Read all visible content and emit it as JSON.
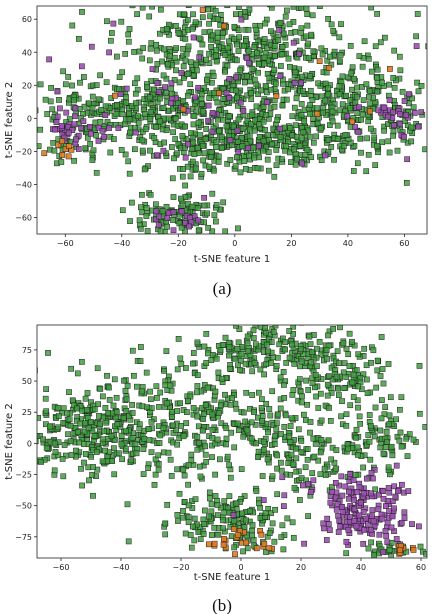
{
  "colors": {
    "majority": "#3f9e3f",
    "minority": "#9b4fb0",
    "rare": "#e07a1f",
    "edge": "#1f1f1f"
  },
  "chart_data": [
    {
      "type": "scatter",
      "caption": "(a)",
      "xlabel": "t-SNE feature 1",
      "ylabel": "t-SNE feature 2",
      "xlim": [
        -70,
        68
      ],
      "ylim": [
        -70,
        68
      ],
      "xticks": [
        -60,
        -40,
        -20,
        0,
        20,
        40,
        60
      ],
      "yticks": [
        -60,
        -40,
        -20,
        0,
        20,
        40,
        60
      ],
      "grid": false,
      "marker": "square",
      "clusters": [
        {
          "cls": "majority",
          "x": 0,
          "y": 40,
          "sx": 22,
          "sy": 18,
          "n": 520
        },
        {
          "cls": "majority",
          "x": -30,
          "y": 5,
          "sx": 22,
          "sy": 9,
          "n": 260
        },
        {
          "cls": "majority",
          "x": 20,
          "y": -10,
          "sx": 24,
          "sy": 10,
          "n": 300
        },
        {
          "cls": "majority",
          "x": 45,
          "y": 12,
          "sx": 14,
          "sy": 12,
          "n": 180
        },
        {
          "cls": "majority",
          "x": -20,
          "y": -58,
          "sx": 8,
          "sy": 7,
          "n": 110
        },
        {
          "cls": "majority",
          "x": -5,
          "y": -20,
          "sx": 16,
          "sy": 10,
          "n": 160
        },
        {
          "cls": "majority",
          "x": -55,
          "y": -5,
          "sx": 8,
          "sy": 10,
          "n": 60
        },
        {
          "cls": "minority",
          "x": -58,
          "y": -8,
          "sx": 5,
          "sy": 6,
          "n": 35
        },
        {
          "cls": "minority",
          "x": 55,
          "y": 0,
          "sx": 6,
          "sy": 8,
          "n": 30
        },
        {
          "cls": "minority",
          "x": -10,
          "y": 15,
          "sx": 30,
          "sy": 22,
          "n": 70
        },
        {
          "cls": "minority",
          "x": -22,
          "y": -60,
          "sx": 6,
          "sy": 5,
          "n": 18
        },
        {
          "cls": "rare",
          "x": -62,
          "y": -18,
          "sx": 4,
          "sy": 3,
          "n": 8
        },
        {
          "cls": "rare",
          "x": 45,
          "y": 10,
          "sx": 15,
          "sy": 15,
          "n": 8
        },
        {
          "cls": "rare",
          "x": -5,
          "y": 30,
          "sx": 20,
          "sy": 20,
          "n": 6
        }
      ]
    },
    {
      "type": "scatter",
      "caption": "(b)",
      "xlabel": "t-SNE feature 1",
      "ylabel": "t-SNE feature 2",
      "xlim": [
        -68,
        62
      ],
      "ylim": [
        -92,
        95
      ],
      "xticks": [
        -60,
        -40,
        -20,
        0,
        20,
        40,
        60
      ],
      "yticks": [
        -75,
        -50,
        -25,
        0,
        25,
        50,
        75
      ],
      "grid": false,
      "marker": "square",
      "clusters": [
        {
          "cls": "majority",
          "x": -50,
          "y": 10,
          "sx": 12,
          "sy": 18,
          "n": 260
        },
        {
          "cls": "majority",
          "x": -15,
          "y": 15,
          "sx": 20,
          "sy": 25,
          "n": 360
        },
        {
          "cls": "majority",
          "x": 12,
          "y": 75,
          "sx": 14,
          "sy": 10,
          "n": 180
        },
        {
          "cls": "majority",
          "x": 35,
          "y": 55,
          "sx": 8,
          "sy": 12,
          "n": 90
        },
        {
          "cls": "majority",
          "x": 45,
          "y": 5,
          "sx": 7,
          "sy": 15,
          "n": 90
        },
        {
          "cls": "majority",
          "x": 20,
          "y": 0,
          "sx": 10,
          "sy": 20,
          "n": 150
        },
        {
          "cls": "majority",
          "x": -5,
          "y": -65,
          "sx": 12,
          "sy": 10,
          "n": 150
        },
        {
          "cls": "majority",
          "x": 50,
          "y": -85,
          "sx": 8,
          "sy": 3,
          "n": 30
        },
        {
          "cls": "minority",
          "x": 42,
          "y": -55,
          "sx": 7,
          "sy": 15,
          "n": 160
        },
        {
          "cls": "minority",
          "x": 28,
          "y": -40,
          "sx": 12,
          "sy": 12,
          "n": 20
        },
        {
          "cls": "rare",
          "x": 0,
          "y": -80,
          "sx": 7,
          "sy": 6,
          "n": 22
        },
        {
          "cls": "rare",
          "x": 55,
          "y": -86,
          "sx": 4,
          "sy": 2,
          "n": 8
        }
      ]
    }
  ]
}
